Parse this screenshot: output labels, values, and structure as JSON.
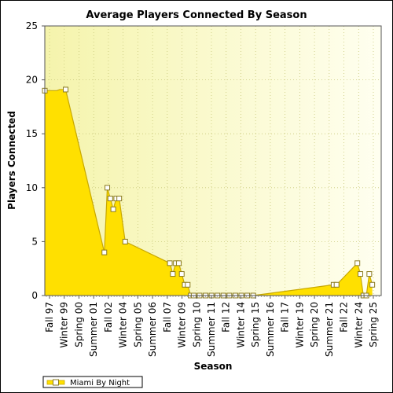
{
  "chart_data": {
    "type": "area",
    "title": "Average Players Connected By Season",
    "xlabel": "Season",
    "ylabel": "Players Connected",
    "ylim": [
      0,
      25
    ],
    "yticks": [
      0,
      5,
      10,
      15,
      20,
      25
    ],
    "grid": true,
    "legend_placement": "bottom-left",
    "colors": {
      "fill": "#ffe000",
      "line": "#c8a800",
      "plot_bg_left": "#f5f4ac",
      "plot_bg_right": "#fffff0",
      "grid": "#c8c87a",
      "marker_fill": "#ffffff",
      "marker_stroke": "#8a7a20"
    },
    "x_labels": [
      "Fall 97",
      "Winter 99",
      "Spring 00",
      "Summer 01",
      "Fall 02",
      "Winter 04",
      "Spring 05",
      "Summer 06",
      "Fall 07",
      "Winter 09",
      "Spring 10",
      "Summer 11",
      "Fall 12",
      "Winter 14",
      "Spring 15",
      "Summer 16",
      "Fall 17",
      "Winter 19",
      "Spring 20",
      "Summer 21",
      "Fall 22",
      "Winter 24",
      "Spring 25"
    ],
    "x_range": [
      0,
      113
    ],
    "series": [
      {
        "name": "Miami By Night",
        "points": [
          [
            0,
            19
          ],
          [
            1,
            19
          ],
          [
            2,
            19
          ],
          [
            3,
            19
          ],
          [
            4,
            19
          ],
          [
            5,
            19.1
          ],
          [
            6,
            19.1
          ],
          [
            7,
            19.1
          ],
          [
            20,
            4
          ],
          [
            21,
            10
          ],
          [
            22,
            9
          ],
          [
            23,
            8
          ],
          [
            24,
            9
          ],
          [
            25,
            9
          ],
          [
            27,
            5
          ],
          [
            42,
            3
          ],
          [
            43,
            2
          ],
          [
            44,
            3
          ],
          [
            45,
            3
          ],
          [
            46,
            2
          ],
          [
            47,
            1
          ],
          [
            48,
            1
          ],
          [
            49,
            0
          ],
          [
            50,
            0
          ],
          [
            52,
            0
          ],
          [
            54,
            0
          ],
          [
            56,
            0
          ],
          [
            58,
            0
          ],
          [
            60,
            0
          ],
          [
            62,
            0
          ],
          [
            64,
            0
          ],
          [
            66,
            0
          ],
          [
            68,
            0
          ],
          [
            70,
            0
          ],
          [
            97,
            1
          ],
          [
            98,
            1
          ],
          [
            105,
            3
          ],
          [
            106,
            2
          ],
          [
            107,
            0
          ],
          [
            108,
            0
          ],
          [
            109,
            2
          ],
          [
            110,
            1
          ]
        ],
        "markers": [
          [
            0,
            19
          ],
          [
            7,
            19.1
          ],
          [
            20,
            4
          ],
          [
            21,
            10
          ],
          [
            22,
            9
          ],
          [
            23,
            8
          ],
          [
            24,
            9
          ],
          [
            25,
            9
          ],
          [
            27,
            5
          ],
          [
            42,
            3
          ],
          [
            43,
            2
          ],
          [
            44,
            3
          ],
          [
            45,
            3
          ],
          [
            46,
            2
          ],
          [
            47,
            1
          ],
          [
            48,
            1
          ],
          [
            49,
            0
          ],
          [
            50,
            0
          ],
          [
            52,
            0
          ],
          [
            54,
            0
          ],
          [
            56,
            0
          ],
          [
            58,
            0
          ],
          [
            60,
            0
          ],
          [
            62,
            0
          ],
          [
            64,
            0
          ],
          [
            66,
            0
          ],
          [
            68,
            0
          ],
          [
            70,
            0
          ],
          [
            97,
            1
          ],
          [
            98,
            1
          ],
          [
            105,
            3
          ],
          [
            106,
            2
          ],
          [
            107,
            0
          ],
          [
            108,
            0
          ],
          [
            109,
            2
          ],
          [
            110,
            1
          ]
        ]
      }
    ]
  }
}
